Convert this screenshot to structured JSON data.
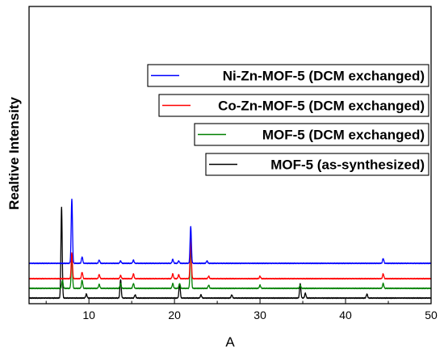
{
  "chart_data": {
    "type": "line",
    "title": "",
    "xlabel": "A",
    "ylabel": "Realtive Intensity",
    "xlim": [
      3,
      50
    ],
    "xticks": [
      10,
      20,
      30,
      40,
      50
    ],
    "xtick_labels": [
      "10",
      "20",
      "30",
      "40",
      "50"
    ],
    "yticks_labels_shown": false,
    "grid": false,
    "legend": "stacked boxes, upper right",
    "series": [
      {
        "name": "MOF-5 (as-synthesized)",
        "color": "#000000",
        "baseline": 0,
        "peaks": [
          [
            6.8,
            112
          ],
          [
            9.7,
            5
          ],
          [
            13.7,
            23
          ],
          [
            15.4,
            4
          ],
          [
            20.6,
            18
          ],
          [
            23.1,
            4
          ],
          [
            26.7,
            4
          ],
          [
            34.7,
            18
          ],
          [
            35.3,
            6
          ],
          [
            42.5,
            5
          ]
        ]
      },
      {
        "name": "MOF-5 (DCM exchanged)",
        "color": "#008000",
        "baseline": 12,
        "peaks": [
          [
            6.9,
            10
          ],
          [
            8.0,
            40
          ],
          [
            9.2,
            10
          ],
          [
            11.2,
            5
          ],
          [
            13.7,
            6
          ],
          [
            15.2,
            6
          ],
          [
            19.8,
            6
          ],
          [
            20.6,
            6
          ],
          [
            21.9,
            55
          ],
          [
            24.0,
            4
          ],
          [
            30.0,
            4
          ],
          [
            34.7,
            4
          ],
          [
            44.4,
            6
          ]
        ]
      },
      {
        "name": "Co-Zn-MOF-5 (DCM exchanged)",
        "color": "#ff0000",
        "baseline": 24,
        "peaks": [
          [
            8.0,
            32
          ],
          [
            9.2,
            8
          ],
          [
            11.2,
            5
          ],
          [
            13.7,
            4
          ],
          [
            15.2,
            6
          ],
          [
            19.8,
            6
          ],
          [
            20.5,
            5
          ],
          [
            21.9,
            50
          ],
          [
            24.0,
            3
          ],
          [
            30.0,
            3
          ],
          [
            44.4,
            6
          ]
        ]
      },
      {
        "name": "Ni-Zn-MOF-5 (DCM exchanged)",
        "color": "#0000ff",
        "baseline": 43,
        "peaks": [
          [
            8.0,
            80
          ],
          [
            9.2,
            8
          ],
          [
            11.2,
            4
          ],
          [
            13.7,
            3
          ],
          [
            15.2,
            4
          ],
          [
            19.8,
            5
          ],
          [
            20.5,
            3
          ],
          [
            21.9,
            46
          ],
          [
            23.8,
            3
          ],
          [
            44.4,
            6
          ]
        ]
      }
    ],
    "legend_entries": [
      {
        "name": "Ni-Zn-MOF-5 (DCM exchanged)",
        "color": "#0000ff"
      },
      {
        "name": "Co-Zn-MOF-5 (DCM exchanged)",
        "color": "#ff0000"
      },
      {
        "name": "MOF-5 (DCM exchanged)",
        "color": "#008000"
      },
      {
        "name": "MOF-5 (as-synthesized)",
        "color": "#000000"
      }
    ]
  }
}
